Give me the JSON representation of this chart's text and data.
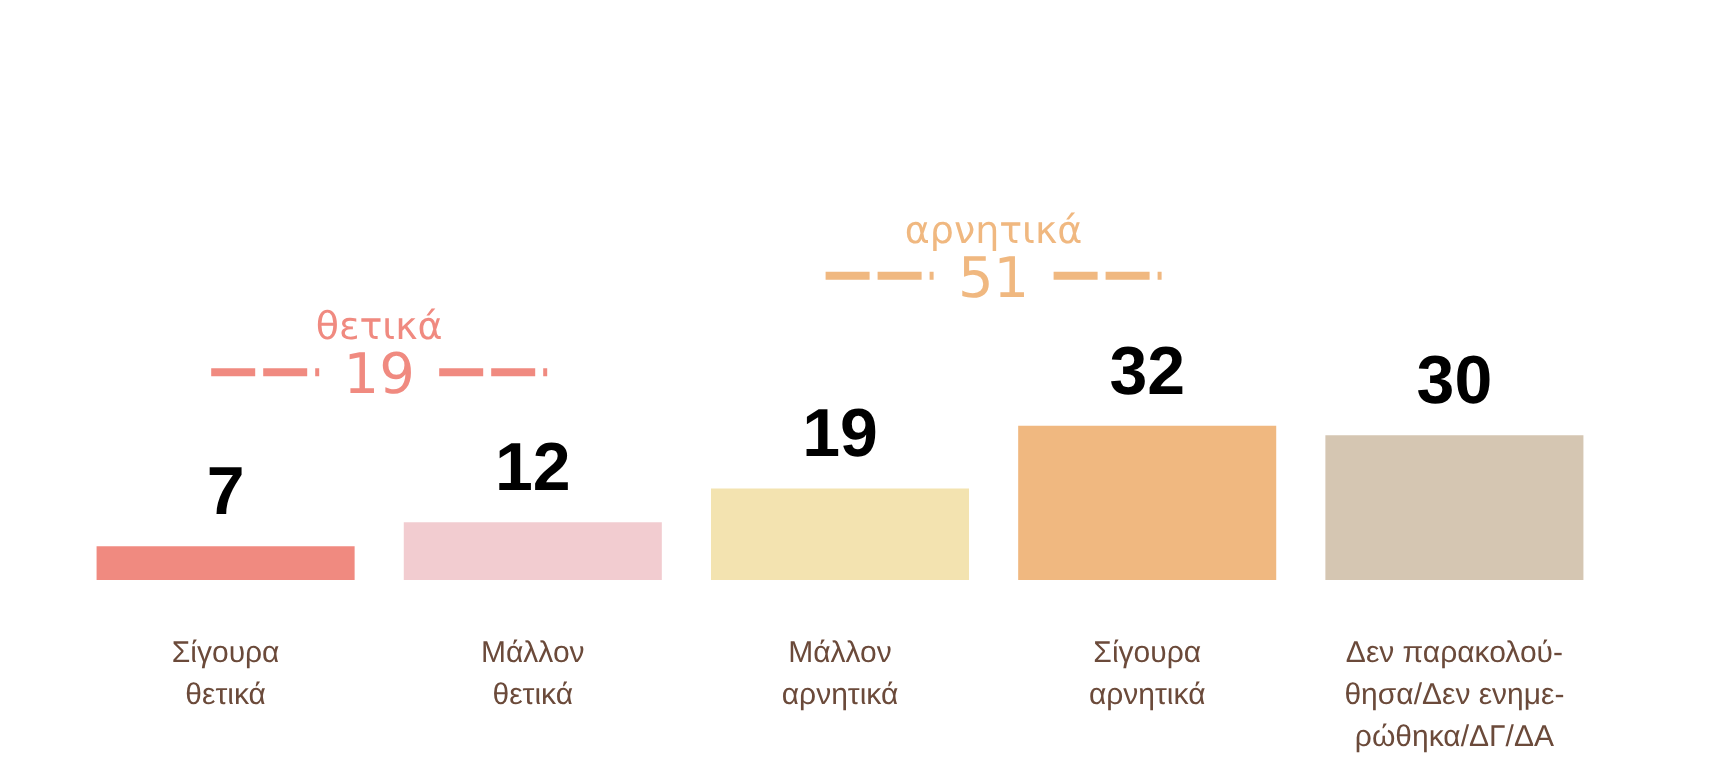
{
  "chart_data": {
    "type": "bar",
    "categories": [
      "Σίγουρα\nθετικά",
      "Μάλλον\nθετικά",
      "Μάλλον\nαρνητικά",
      "Σίγουρα\nαρνητικά",
      "Δεν παρακολού-\nθησα/Δεν ενημε-\nρώθηκα/ΔΓ/ΔΑ"
    ],
    "values": [
      7,
      12,
      19,
      32,
      30
    ],
    "colors": [
      "#f08a80",
      "#f2ccd0",
      "#f3e3b0",
      "#f0b880",
      "#d5c6b2"
    ],
    "data_labels": true,
    "annotations": [
      "θετικά\n19",
      "αρνητικά\n51"
    ]
  }
}
